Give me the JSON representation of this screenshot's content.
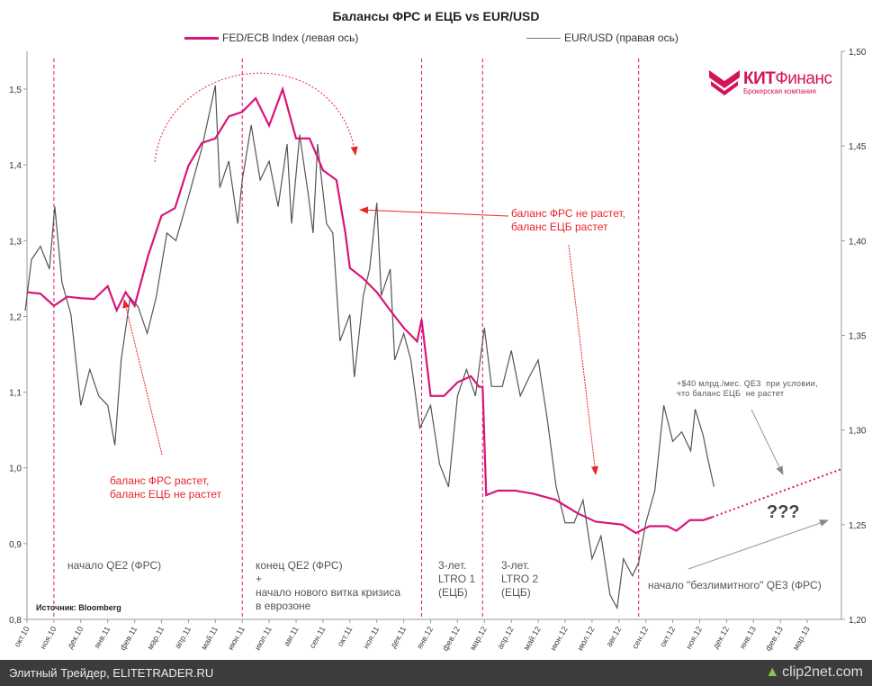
{
  "chart_data": {
    "type": "line",
    "title": "Балансы ФРС и ЕЦБ vs EUR/USD",
    "legend_position": "top",
    "grid": false,
    "x_ticks": [
      "окт.10",
      "ноя.10",
      "дек.10",
      "янв.11",
      "фев.11",
      "мар.11",
      "апр.11",
      "май.11",
      "июн.11",
      "июл.11",
      "авг.11",
      "сен.11",
      "окт.11",
      "ноя.11",
      "дек.11",
      "янв.12",
      "фев.12",
      "мар.12",
      "апр.12",
      "май.12",
      "июн.12",
      "июл.12",
      "авг.12",
      "сен.12",
      "окт.12",
      "ноя.12",
      "дек.12",
      "янв.13",
      "фев.13",
      "мар.13"
    ],
    "xlim": [
      "2010-10-01",
      "2013-04-08"
    ],
    "y_left": {
      "ylim": [
        0.8,
        1.55
      ],
      "ticks": [
        "0,8",
        "0,9",
        "1,0",
        "1,1",
        "1,2",
        "1,3",
        "1,4",
        "1,5"
      ]
    },
    "y_right": {
      "ylim": [
        1.2,
        1.5
      ],
      "ticks": [
        "1,20",
        "1,25",
        "1,30",
        "1,35",
        "1,40",
        "1,45",
        "1,50"
      ]
    },
    "series": [
      {
        "name": "FED/ECB Index (левая ось)",
        "axis": "left",
        "color": "#d8157a",
        "points": [
          [
            "2010-10-01",
            1.232
          ],
          [
            "2010-10-16",
            1.23
          ],
          [
            "2010-11-01",
            1.214
          ],
          [
            "2010-11-16",
            1.226
          ],
          [
            "2010-12-01",
            1.224
          ],
          [
            "2010-12-16",
            1.223
          ],
          [
            "2011-01-01",
            1.24
          ],
          [
            "2011-01-11",
            1.208
          ],
          [
            "2011-01-21",
            1.232
          ],
          [
            "2011-02-01",
            1.214
          ],
          [
            "2011-02-16",
            1.28
          ],
          [
            "2011-03-01",
            1.333
          ],
          [
            "2011-03-16",
            1.343
          ],
          [
            "2011-04-01",
            1.399
          ],
          [
            "2011-04-16",
            1.429
          ],
          [
            "2011-05-01",
            1.435
          ],
          [
            "2011-05-16",
            1.464
          ],
          [
            "2011-06-01",
            1.47
          ],
          [
            "2011-06-16",
            1.488
          ],
          [
            "2011-07-01",
            1.452
          ],
          [
            "2011-07-16",
            1.5
          ],
          [
            "2011-08-01",
            1.435
          ],
          [
            "2011-08-16",
            1.435
          ],
          [
            "2011-09-01",
            1.393
          ],
          [
            "2011-09-16",
            1.38
          ],
          [
            "2011-09-26",
            1.31
          ],
          [
            "2011-10-01",
            1.264
          ],
          [
            "2011-10-16",
            1.25
          ],
          [
            "2011-11-01",
            1.232
          ],
          [
            "2011-11-16",
            1.208
          ],
          [
            "2011-12-01",
            1.185
          ],
          [
            "2011-12-16",
            1.167
          ],
          [
            "2011-12-21",
            1.196
          ],
          [
            "2012-01-01",
            1.095
          ],
          [
            "2012-01-16",
            1.095
          ],
          [
            "2012-02-01",
            1.113
          ],
          [
            "2012-02-16",
            1.121
          ],
          [
            "2012-02-25",
            1.107
          ],
          [
            "2012-02-29",
            1.107
          ],
          [
            "2012-03-03",
            0.964
          ],
          [
            "2012-03-16",
            0.97
          ],
          [
            "2012-04-05",
            0.97
          ],
          [
            "2012-04-25",
            0.966
          ],
          [
            "2012-05-20",
            0.958
          ],
          [
            "2012-06-15",
            0.94
          ],
          [
            "2012-07-05",
            0.929
          ],
          [
            "2012-08-05",
            0.925
          ],
          [
            "2012-08-20",
            0.914
          ],
          [
            "2012-09-05",
            0.923
          ],
          [
            "2012-09-25",
            0.923
          ],
          [
            "2012-10-05",
            0.917
          ],
          [
            "2012-10-20",
            0.931
          ],
          [
            "2012-11-05",
            0.931
          ],
          [
            "2012-11-15",
            0.935
          ]
        ],
        "projection": [
          [
            "2012-11-15",
            0.935
          ],
          [
            "2013-04-08",
            0.998
          ]
        ]
      },
      {
        "name": "EUR/USD (правая ось)",
        "axis": "right",
        "color": "#555555",
        "points": [
          [
            "2010-09-29",
            1.363
          ],
          [
            "2010-10-06",
            1.39
          ],
          [
            "2010-10-16",
            1.397
          ],
          [
            "2010-10-26",
            1.385
          ],
          [
            "2010-11-02",
            1.418
          ],
          [
            "2010-11-10",
            1.378
          ],
          [
            "2010-11-20",
            1.361
          ],
          [
            "2010-12-01",
            1.313
          ],
          [
            "2010-12-11",
            1.332
          ],
          [
            "2010-12-21",
            1.318
          ],
          [
            "2011-01-01",
            1.313
          ],
          [
            "2011-01-09",
            1.292
          ],
          [
            "2011-01-16",
            1.337
          ],
          [
            "2011-01-26",
            1.37
          ],
          [
            "2011-02-05",
            1.365
          ],
          [
            "2011-02-15",
            1.351
          ],
          [
            "2011-02-25",
            1.37
          ],
          [
            "2011-03-07",
            1.404
          ],
          [
            "2011-03-17",
            1.4
          ],
          [
            "2011-04-01",
            1.423
          ],
          [
            "2011-04-16",
            1.449
          ],
          [
            "2011-05-01",
            1.482
          ],
          [
            "2011-05-06",
            1.428
          ],
          [
            "2011-05-16",
            1.442
          ],
          [
            "2011-05-26",
            1.409
          ],
          [
            "2011-06-01",
            1.432
          ],
          [
            "2011-06-11",
            1.461
          ],
          [
            "2011-06-21",
            1.432
          ],
          [
            "2011-07-01",
            1.442
          ],
          [
            "2011-07-11",
            1.418
          ],
          [
            "2011-07-21",
            1.451
          ],
          [
            "2011-07-26",
            1.409
          ],
          [
            "2011-08-05",
            1.456
          ],
          [
            "2011-08-15",
            1.423
          ],
          [
            "2011-08-20",
            1.404
          ],
          [
            "2011-08-25",
            1.451
          ],
          [
            "2011-09-05",
            1.409
          ],
          [
            "2011-09-12",
            1.404
          ],
          [
            "2011-09-20",
            1.347
          ],
          [
            "2011-10-01",
            1.361
          ],
          [
            "2011-10-06",
            1.328
          ],
          [
            "2011-10-16",
            1.371
          ],
          [
            "2011-10-23",
            1.385
          ],
          [
            "2011-11-01",
            1.42
          ],
          [
            "2011-11-06",
            1.371
          ],
          [
            "2011-11-16",
            1.385
          ],
          [
            "2011-11-21",
            1.337
          ],
          [
            "2011-12-01",
            1.351
          ],
          [
            "2011-12-09",
            1.337
          ],
          [
            "2011-12-19",
            1.301
          ],
          [
            "2012-01-01",
            1.313
          ],
          [
            "2012-01-11",
            1.282
          ],
          [
            "2012-01-21",
            1.27
          ],
          [
            "2012-02-01",
            1.318
          ],
          [
            "2012-02-11",
            1.332
          ],
          [
            "2012-02-21",
            1.318
          ],
          [
            "2012-03-01",
            1.354
          ],
          [
            "2012-03-09",
            1.323
          ],
          [
            "2012-03-21",
            1.323
          ],
          [
            "2012-04-01",
            1.342
          ],
          [
            "2012-04-11",
            1.318
          ],
          [
            "2012-04-21",
            1.328
          ],
          [
            "2012-05-01",
            1.337
          ],
          [
            "2012-05-11",
            1.306
          ],
          [
            "2012-05-21",
            1.27
          ],
          [
            "2012-06-01",
            1.251
          ],
          [
            "2012-06-11",
            1.251
          ],
          [
            "2012-06-21",
            1.263
          ],
          [
            "2012-07-01",
            1.232
          ],
          [
            "2012-07-11",
            1.244
          ],
          [
            "2012-07-21",
            1.213
          ],
          [
            "2012-07-29",
            1.206
          ],
          [
            "2012-08-06",
            1.232
          ],
          [
            "2012-08-16",
            1.223
          ],
          [
            "2012-08-23",
            1.23
          ],
          [
            "2012-09-01",
            1.251
          ],
          [
            "2012-09-11",
            1.268
          ],
          [
            "2012-09-21",
            1.313
          ],
          [
            "2012-10-01",
            1.294
          ],
          [
            "2012-10-11",
            1.299
          ],
          [
            "2012-10-21",
            1.289
          ],
          [
            "2012-10-26",
            1.311
          ],
          [
            "2012-11-05",
            1.297
          ],
          [
            "2012-11-10",
            1.285
          ],
          [
            "2012-11-17",
            1.27
          ]
        ]
      }
    ],
    "event_lines": [
      "2010-11-01",
      "2011-06-01",
      "2011-12-21",
      "2012-02-29",
      "2012-08-23"
    ],
    "event_line_color": "#d8157a",
    "annotation_color": "#e8242c",
    "annotations": {
      "fed_up": "баланс ФРС растет,\nбаланс ЕЦБ не растет",
      "fed_flat": "баланс ФРС не растет,\nбаланс ЕЦБ растет",
      "qe2_start": "начало QE2 (ФРС)",
      "qe2_end": "конец QE2 (ФРС)\n+\nначало нового витка кризиса\nв еврозоне",
      "ltro1": "3-лет.\nLTRO 1\n(ЕЦБ)",
      "ltro2": "3-лет.\nLTRO 2\n(ЕЦБ)",
      "qe3_condition": "+$40 млрд./мес. QE3  при условии,\nчто баланс ЕЦБ  не растет",
      "question": "???",
      "qe3_start": "начало \"безлимитного\" QE3 (ФРС)",
      "source": "Источник: Bloomberg"
    }
  },
  "logo": {
    "name_bold": "КИТ",
    "name_rest": "Финанс",
    "subtitle": "Брокерская компания"
  },
  "footer": {
    "site": "Элитный Трейдер, ELITETRADER.RU",
    "clip_logo": "clip2net.com"
  }
}
